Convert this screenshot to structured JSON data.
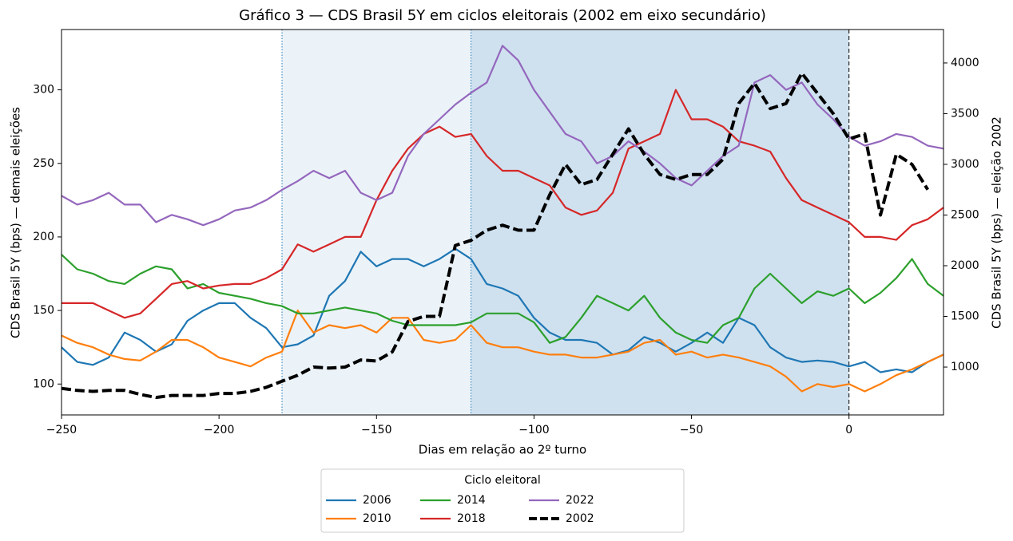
{
  "chart_data": {
    "type": "line",
    "title": "Gráfico 3 — CDS Brasil 5Y em ciclos eleitorais (2002 em eixo secundário)",
    "xlabel": "Dias em relação ao 2º turno",
    "ylabel": "CDS Brasil 5Y (bps) — demais eleições",
    "y2label": "CDS Brasil 5Y (bps) — eleição 2002",
    "legend_title": "Ciclo eleitoral",
    "legend": "lower center outside",
    "x": [
      -250,
      -245,
      -240,
      -235,
      -230,
      -225,
      -220,
      -215,
      -210,
      -205,
      -200,
      -195,
      -190,
      -185,
      -180,
      -175,
      -170,
      -165,
      -160,
      -155,
      -150,
      -145,
      -140,
      -135,
      -130,
      -125,
      -120,
      -115,
      -110,
      -105,
      -100,
      -95,
      -90,
      -85,
      -80,
      -75,
      -70,
      -65,
      -60,
      -55,
      -50,
      -45,
      -40,
      -35,
      -30,
      -25,
      -20,
      -15,
      -10,
      -5,
      0,
      5,
      10,
      15,
      20,
      25,
      30
    ],
    "xlim": [
      -250,
      30
    ],
    "xticks": [
      {
        "value": -250,
        "label": "−250"
      },
      {
        "value": -200,
        "label": "−200"
      },
      {
        "value": -150,
        "label": "−150"
      },
      {
        "value": -100,
        "label": "−100"
      },
      {
        "value": -50,
        "label": "−50"
      },
      0
    ],
    "ylim": [
      79,
      341
    ],
    "yticks": [
      100,
      150,
      200,
      250,
      300
    ],
    "y2lim": [
      528,
      4330
    ],
    "y2ticks": [
      1000,
      1500,
      2000,
      2500,
      3000,
      3500,
      4000
    ],
    "spans": [
      {
        "x0": -180,
        "x1": -120,
        "color": "#ebf3f9"
      },
      {
        "x0": -120,
        "x1": 0,
        "color": "#cfe1ef"
      }
    ],
    "vlines": [
      {
        "x": -180,
        "style": "dotted",
        "color": "#1f77b4"
      },
      {
        "x": -120,
        "style": "dotted",
        "color": "#1f77b4"
      },
      {
        "x": 0,
        "style": "dashed",
        "color": "#000000"
      }
    ],
    "series": [
      {
        "name": "2006",
        "color": "#1f77b4",
        "style": "solid",
        "values": [
          125,
          115,
          113,
          118,
          135,
          130,
          122,
          127,
          143,
          150,
          155,
          155,
          145,
          138,
          125,
          127,
          133,
          160,
          170,
          190,
          180,
          185,
          185,
          180,
          185,
          192,
          185,
          168,
          165,
          160,
          145,
          135,
          130,
          130,
          128,
          120,
          123,
          132,
          128,
          122,
          128,
          135,
          128,
          145,
          140,
          125,
          118,
          115,
          116,
          115,
          112,
          115,
          108,
          110,
          108,
          115,
          120
        ]
      },
      {
        "name": "2010",
        "color": "#ff7f0e",
        "style": "solid",
        "values": [
          133,
          128,
          125,
          120,
          117,
          116,
          122,
          130,
          130,
          125,
          118,
          115,
          112,
          118,
          122,
          150,
          135,
          140,
          138,
          140,
          135,
          145,
          145,
          130,
          128,
          130,
          140,
          128,
          125,
          125,
          122,
          120,
          120,
          118,
          118,
          120,
          122,
          128,
          130,
          120,
          122,
          118,
          120,
          118,
          115,
          112,
          105,
          95,
          100,
          98,
          100,
          95,
          100,
          106,
          110,
          115,
          120
        ]
      },
      {
        "name": "2014",
        "color": "#2ca02c",
        "style": "solid",
        "values": [
          188,
          178,
          175,
          170,
          168,
          175,
          180,
          178,
          165,
          168,
          162,
          160,
          158,
          155,
          153,
          148,
          148,
          150,
          152,
          150,
          148,
          143,
          140,
          140,
          140,
          140,
          142,
          148,
          148,
          148,
          142,
          128,
          132,
          145,
          160,
          155,
          150,
          160,
          145,
          135,
          130,
          128,
          140,
          145,
          165,
          175,
          165,
          155,
          163,
          160,
          165,
          155,
          162,
          172,
          185,
          168,
          160
        ]
      },
      {
        "name": "2018",
        "color": "#d62728",
        "style": "solid",
        "values": [
          155,
          155,
          155,
          150,
          145,
          148,
          158,
          168,
          170,
          165,
          167,
          168,
          168,
          172,
          178,
          195,
          190,
          195,
          200,
          200,
          225,
          245,
          260,
          270,
          275,
          268,
          270,
          255,
          245,
          245,
          240,
          235,
          220,
          215,
          218,
          230,
          260,
          265,
          270,
          300,
          280,
          280,
          275,
          265,
          262,
          258,
          240,
          225,
          220,
          215,
          210,
          200,
          200,
          198,
          208,
          212,
          220
        ]
      },
      {
        "name": "2022",
        "color": "#9467bd",
        "style": "solid",
        "values": [
          228,
          222,
          225,
          230,
          222,
          222,
          210,
          215,
          212,
          208,
          212,
          218,
          220,
          225,
          232,
          238,
          245,
          240,
          245,
          230,
          225,
          230,
          255,
          270,
          280,
          290,
          298,
          305,
          330,
          320,
          300,
          285,
          270,
          265,
          250,
          255,
          265,
          258,
          250,
          240,
          235,
          245,
          255,
          262,
          305,
          310,
          300,
          305,
          290,
          280,
          268,
          262,
          265,
          270,
          268,
          262,
          260
        ]
      },
      {
        "name": "2002",
        "color": "#000000",
        "style": "dashed",
        "axis": "y2",
        "values": [
          790,
          770,
          760,
          770,
          770,
          730,
          700,
          720,
          720,
          720,
          740,
          740,
          760,
          800,
          860,
          920,
          1000,
          990,
          1000,
          1070,
          1060,
          1150,
          1450,
          1500,
          1500,
          2200,
          2250,
          2350,
          2400,
          2350,
          2350,
          2700,
          3000,
          2800,
          2850,
          3100,
          3350,
          3100,
          2900,
          2850,
          2900,
          2900,
          3050,
          3600,
          3800,
          3550,
          3600,
          3900,
          3700,
          3500,
          3250,
          3300,
          2500,
          3100,
          3000,
          2750,
          null
        ]
      }
    ]
  }
}
